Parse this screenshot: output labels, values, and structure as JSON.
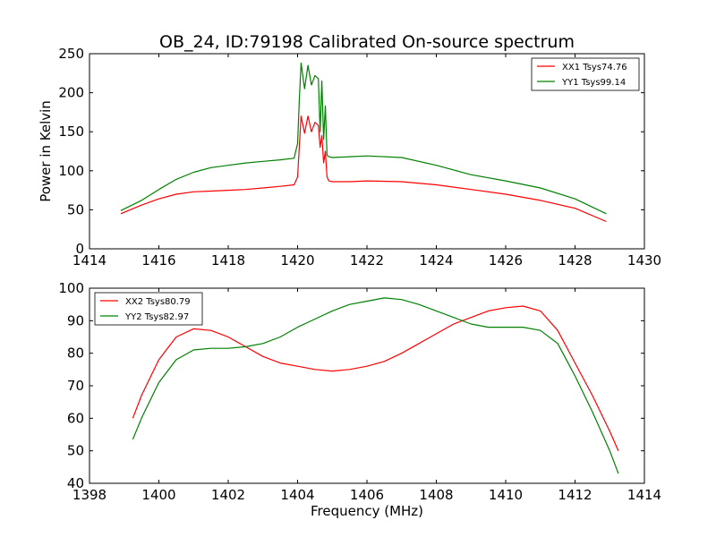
{
  "title": "OB_24, ID:79198 Calibrated On-source spectrum",
  "xlabel": "Frequency (MHz)",
  "colors": {
    "xx": "#ff0000",
    "yy": "#008000"
  },
  "chart_data": [
    {
      "type": "line",
      "title": "OB_24, ID:79198 Calibrated On-source spectrum",
      "xlabel": "",
      "ylabel": "Power in Kelvin",
      "xlim": [
        1414,
        1430
      ],
      "ylim": [
        0,
        250
      ],
      "xticks": [
        1414,
        1416,
        1418,
        1420,
        1422,
        1424,
        1426,
        1428,
        1430
      ],
      "yticks": [
        0,
        50,
        100,
        150,
        200,
        250
      ],
      "grid": false,
      "legend_position": "top-right",
      "series": [
        {
          "name": "XX1 Tsys74.76",
          "color": "#ff0000",
          "x": [
            1414.9,
            1415.5,
            1416,
            1416.5,
            1417,
            1417.5,
            1418,
            1418.5,
            1419,
            1419.5,
            1419.9,
            1420.0,
            1420.05,
            1420.1,
            1420.2,
            1420.3,
            1420.4,
            1420.5,
            1420.6,
            1420.65,
            1420.7,
            1420.75,
            1420.8,
            1420.85,
            1420.9,
            1421.0,
            1421.5,
            1422,
            1423,
            1424,
            1425,
            1426,
            1427,
            1428,
            1428.9
          ],
          "y": [
            45,
            56,
            64,
            70,
            73,
            74,
            75,
            76,
            78,
            80,
            82,
            92,
            130,
            170,
            148,
            170,
            150,
            162,
            158,
            130,
            145,
            110,
            125,
            92,
            87,
            86,
            86,
            87,
            86,
            82,
            76,
            70,
            62,
            52,
            35
          ]
        },
        {
          "name": "YY1 Tsys99.14",
          "color": "#008000",
          "x": [
            1414.9,
            1415.5,
            1416,
            1416.5,
            1417,
            1417.5,
            1418,
            1418.5,
            1419,
            1419.5,
            1419.9,
            1420.0,
            1420.05,
            1420.1,
            1420.2,
            1420.3,
            1420.4,
            1420.5,
            1420.6,
            1420.65,
            1420.7,
            1420.75,
            1420.8,
            1420.85,
            1420.9,
            1421.0,
            1421.5,
            1422,
            1423,
            1424,
            1425,
            1426,
            1427,
            1428,
            1428.9
          ],
          "y": [
            49,
            62,
            76,
            89,
            98,
            104,
            107,
            110,
            112,
            114,
            116,
            135,
            190,
            238,
            205,
            235,
            210,
            222,
            218,
            150,
            215,
            140,
            183,
            120,
            118,
            117,
            118,
            119,
            117,
            107,
            95,
            87,
            78,
            64,
            45
          ]
        }
      ]
    },
    {
      "type": "line",
      "title": "",
      "xlabel": "Frequency (MHz)",
      "ylabel": "",
      "xlim": [
        1398,
        1414
      ],
      "ylim": [
        40,
        100
      ],
      "xticks": [
        1398,
        1400,
        1402,
        1404,
        1406,
        1408,
        1410,
        1412,
        1414
      ],
      "yticks": [
        40,
        50,
        60,
        70,
        80,
        90,
        100
      ],
      "grid": false,
      "legend_position": "top-left",
      "series": [
        {
          "name": "XX2 Tsys80.79",
          "color": "#ff0000",
          "x": [
            1399.25,
            1399.5,
            1400,
            1400.5,
            1401,
            1401.5,
            1402,
            1402.5,
            1403,
            1403.5,
            1404,
            1404.5,
            1405,
            1405.5,
            1406,
            1406.5,
            1407,
            1407.5,
            1408,
            1408.5,
            1409,
            1409.5,
            1410,
            1410.5,
            1411,
            1411.5,
            1412,
            1412.5,
            1413,
            1413.25
          ],
          "y": [
            60,
            67,
            78,
            85,
            87.5,
            87,
            85,
            82,
            79,
            77,
            76,
            75,
            74.5,
            75,
            76,
            77.5,
            80,
            83,
            86,
            89,
            91,
            93,
            94,
            94.5,
            93,
            87,
            77,
            67,
            56,
            50
          ]
        },
        {
          "name": "YY2 Tsys82.97",
          "color": "#008000",
          "x": [
            1399.25,
            1399.5,
            1400,
            1400.5,
            1401,
            1401.5,
            1402,
            1402.5,
            1403,
            1403.5,
            1404,
            1404.5,
            1405,
            1405.5,
            1406,
            1406.5,
            1407,
            1407.5,
            1408,
            1408.5,
            1409,
            1409.5,
            1410,
            1410.5,
            1411,
            1411.5,
            1412,
            1412.5,
            1413,
            1413.25
          ],
          "y": [
            53.5,
            60,
            71,
            78,
            81,
            81.5,
            81.5,
            82,
            83,
            85,
            88,
            90.5,
            93,
            95,
            96,
            97,
            96.5,
            95,
            93,
            91,
            89,
            88,
            88,
            88,
            87,
            83,
            73,
            62,
            50,
            43
          ]
        }
      ]
    }
  ]
}
